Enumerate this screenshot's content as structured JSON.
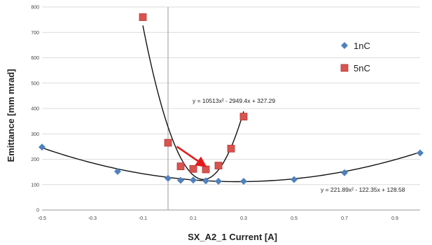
{
  "chart_data": {
    "type": "scatter",
    "xlabel": "SX_A2_1 Current [A]",
    "ylabel": "Emittance [mm mrad]",
    "xlim": [
      -0.5,
      1.0
    ],
    "ylim": [
      0,
      800
    ],
    "xticks": [
      -0.5,
      -0.3,
      -0.1,
      0.1,
      0.3,
      0.5,
      0.7,
      0.9
    ],
    "xtick_labels": [
      "-0.5",
      "-0.3",
      "-0.1",
      "0.1",
      "0.3",
      "0.5",
      "0.7",
      "0.9"
    ],
    "yticks": [
      0,
      100,
      200,
      300,
      400,
      500,
      600,
      700,
      800
    ],
    "ytick_labels": [
      "0",
      "100",
      "200",
      "300",
      "400",
      "500",
      "600",
      "700",
      "800"
    ],
    "grid": "horizontal",
    "legend_position": "top-right",
    "series": [
      {
        "name": "1nC",
        "marker": "diamond",
        "color": "#4f81bd",
        "x": [
          -0.5,
          -0.2,
          0.0,
          0.05,
          0.1,
          0.15,
          0.2,
          0.3,
          0.5,
          0.7,
          1.0
        ],
        "y": [
          248,
          152,
          125,
          117,
          118,
          115,
          113,
          113,
          120,
          147,
          225
        ],
        "trendline": {
          "type": "poly2",
          "coefficients": [
            221.89,
            -122.35,
            128.58
          ],
          "equation": "y = 221.89x² - 122.35x + 128.58",
          "x_range": [
            -0.5,
            1.0
          ]
        }
      },
      {
        "name": "5nC",
        "marker": "square",
        "color": "#c0504d",
        "x": [
          -0.1,
          0.0,
          0.05,
          0.1,
          0.15,
          0.2,
          0.25,
          0.3
        ],
        "y": [
          760,
          265,
          172,
          162,
          160,
          175,
          242,
          368
        ],
        "trendline": {
          "type": "poly2",
          "coefficients": [
            10513,
            -2949.4,
            327.29
          ],
          "equation": "y = 10513x² - 2949.4x + 327.29",
          "x_range": [
            -0.1,
            0.3
          ]
        }
      }
    ],
    "annotations": [
      {
        "type": "arrow",
        "color": "#e31a1c",
        "from": [
          0.035,
          250
        ],
        "to": [
          0.145,
          175
        ]
      }
    ]
  }
}
